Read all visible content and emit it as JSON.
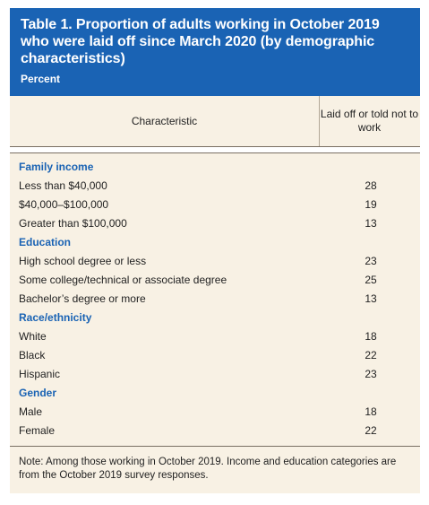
{
  "table": {
    "title": "Table 1. Proportion of adults working in October 2019 who were laid off since March 2020 (by demographic characteristics)",
    "subtitle": "Percent",
    "col_characteristic": "Characteristic",
    "col_laid_off": "Laid off or told not to work",
    "sections": [
      {
        "heading": "Family income",
        "rows": [
          {
            "label": "Less than $40,000",
            "value": "28"
          },
          {
            "label": "$40,000–$100,000",
            "value": "19"
          },
          {
            "label": "Greater than $100,000",
            "value": "13"
          }
        ]
      },
      {
        "heading": "Education",
        "rows": [
          {
            "label": "High school degree or less",
            "value": "23"
          },
          {
            "label": "Some college/technical or associate degree",
            "value": "25"
          },
          {
            "label": "Bachelor’s degree or more",
            "value": "13"
          }
        ]
      },
      {
        "heading": "Race/ethnicity",
        "rows": [
          {
            "label": "White",
            "value": "18"
          },
          {
            "label": "Black",
            "value": "22"
          },
          {
            "label": "Hispanic",
            "value": "23"
          }
        ]
      },
      {
        "heading": "Gender",
        "rows": [
          {
            "label": "Male",
            "value": "18"
          },
          {
            "label": "Female",
            "value": "22"
          }
        ]
      }
    ],
    "note": "Note: Among those working in October 2019. Income and education categories are from the October 2019 survey responses."
  },
  "colors": {
    "header_bg": "#1a63b4",
    "body_bg": "#f8f1e4",
    "section_text": "#1a63b4"
  }
}
